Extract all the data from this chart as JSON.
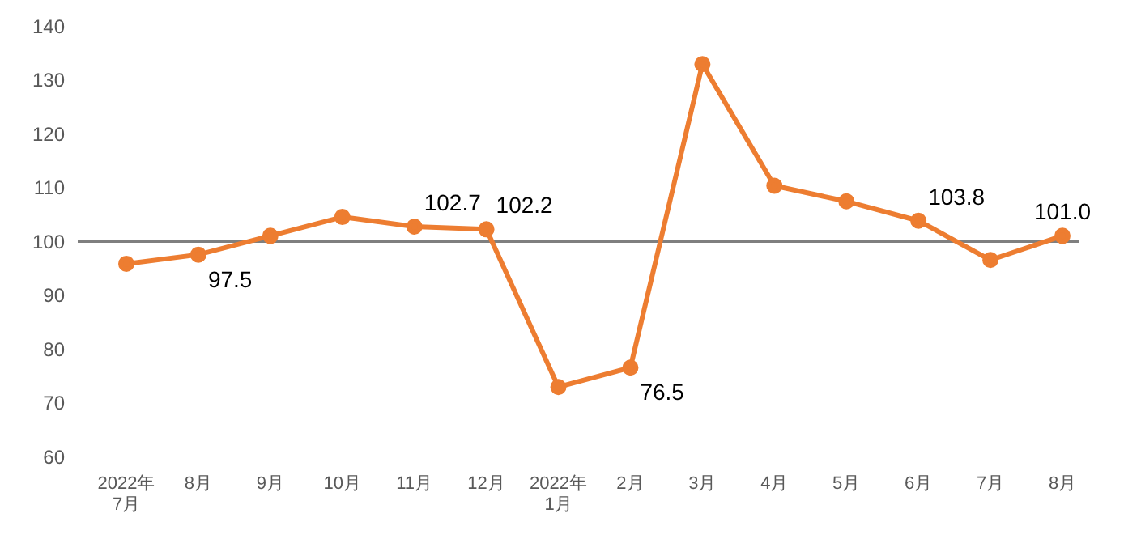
{
  "chart_data": {
    "type": "line",
    "categories": [
      "2022年\n7月",
      "8月",
      "9月",
      "10月",
      "11月",
      "12月",
      "2022年\n1月",
      "2月",
      "3月",
      "4月",
      "5月",
      "6月",
      "7月",
      "8月"
    ],
    "series": [
      {
        "color": "#ed7d31",
        "values": [
          95.8,
          97.5,
          101.0,
          104.5,
          102.7,
          102.2,
          72.9,
          76.5,
          132.9,
          110.3,
          107.4,
          103.8,
          96.5,
          101.0
        ],
        "value_labels": [
          null,
          "97.5",
          null,
          null,
          "102.7",
          "102.2",
          null,
          "76.5",
          null,
          null,
          null,
          "103.8",
          null,
          "101.0"
        ]
      }
    ],
    "ylim": [
      60,
      140
    ],
    "yticks": [
      60,
      70,
      80,
      90,
      100,
      110,
      120,
      130,
      140
    ],
    "grid": false,
    "legend": false,
    "marker": "circle",
    "line_style": "solid",
    "ref_lines": [
      {
        "axis": "y",
        "value": 100,
        "color": "#7f7f7f"
      }
    ]
  }
}
